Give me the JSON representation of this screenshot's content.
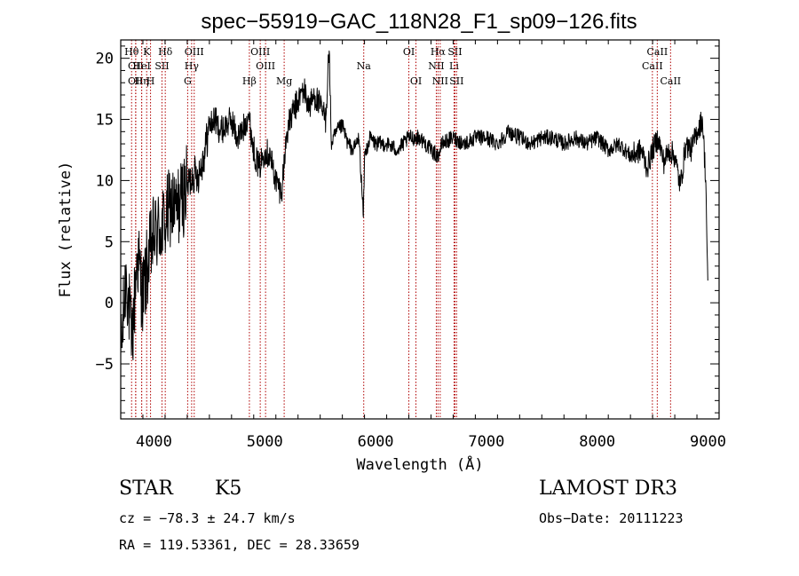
{
  "chart_data": {
    "type": "line",
    "title": "spec−55919−GAC_118N28_F1_sp09−126.fits",
    "xlabel": "Wavelength (Å)",
    "ylabel": "Flux (relative)",
    "xlim": [
      3700,
      9100
    ],
    "ylim": [
      -9.5,
      21.5
    ],
    "x_ticks": [
      4000,
      5000,
      6000,
      7000,
      8000,
      9000
    ],
    "x_tick_labels": [
      "4000",
      "5000",
      "6000",
      "7000",
      "8000",
      "9000"
    ],
    "y_ticks": [
      -5,
      0,
      5,
      10,
      15,
      20
    ],
    "y_tick_labels": [
      "−5",
      "0",
      "5",
      "10",
      "15",
      "20"
    ],
    "grid": false,
    "series": [
      {
        "name": "flux",
        "x": [
          3700,
          3750,
          3800,
          3850,
          3900,
          3950,
          4000,
          4050,
          4100,
          4150,
          4200,
          4250,
          4300,
          4350,
          4400,
          4450,
          4500,
          4550,
          4600,
          4650,
          4700,
          4750,
          4800,
          4850,
          4900,
          4950,
          5000,
          5050,
          5100,
          5150,
          5200,
          5250,
          5300,
          5350,
          5400,
          5450,
          5500,
          5550,
          5580,
          5600,
          5650,
          5700,
          5750,
          5800,
          5850,
          5890,
          5900,
          5950,
          6000,
          6100,
          6200,
          6300,
          6400,
          6500,
          6563,
          6600,
          6700,
          6800,
          6900,
          7000,
          7100,
          7200,
          7300,
          7400,
          7500,
          7600,
          7700,
          7800,
          7900,
          8000,
          8100,
          8200,
          8300,
          8400,
          8450,
          8500,
          8550,
          8600,
          8650,
          8700,
          8750,
          8800,
          8850,
          8900,
          8950,
          8980,
          9000
        ],
        "y": [
          -4.5,
          2.5,
          -3.5,
          4.0,
          0.5,
          3.5,
          5.5,
          6.0,
          6.5,
          8.0,
          7.5,
          8.5,
          9.5,
          10.5,
          10.5,
          12.0,
          14.5,
          15.0,
          14.0,
          14.5,
          15.0,
          13.5,
          14.0,
          15.5,
          12.5,
          11.0,
          12.5,
          12.0,
          10.0,
          9.0,
          14.0,
          15.5,
          16.5,
          17.5,
          16.0,
          17.0,
          16.0,
          15.0,
          21.0,
          13.0,
          14.0,
          14.5,
          13.0,
          12.5,
          13.5,
          7.0,
          12.0,
          13.5,
          13.0,
          13.0,
          12.5,
          13.5,
          13.5,
          12.5,
          12.0,
          13.0,
          13.5,
          13.0,
          13.5,
          13.5,
          13.0,
          14.0,
          13.5,
          13.0,
          13.5,
          13.5,
          13.0,
          13.5,
          13.0,
          13.5,
          12.5,
          13.0,
          12.0,
          12.5,
          11.0,
          12.5,
          13.5,
          11.5,
          12.5,
          12.0,
          9.5,
          13.0,
          12.5,
          14.0,
          15.0,
          10.0,
          0.5
        ]
      }
    ],
    "line_markers": [
      {
        "wl": 3798,
        "label": "Hθ",
        "row": 0
      },
      {
        "wl": 3835,
        "label": "OII",
        "row": 1
      },
      {
        "wl": 3835,
        "label": "OII",
        "row": 2
      },
      {
        "wl": 3889,
        "label": "Hη",
        "row": 2
      },
      {
        "wl": 3934,
        "label": "K",
        "row": 0
      },
      {
        "wl": 3969,
        "label": "H",
        "row": 2
      },
      {
        "wl": 3889,
        "label": "HeI",
        "row": 1
      },
      {
        "wl": 4072,
        "label": "SII",
        "row": 1
      },
      {
        "wl": 4102,
        "label": "Hδ",
        "row": 0
      },
      {
        "wl": 4304,
        "label": "G",
        "row": 2
      },
      {
        "wl": 4340,
        "label": "Hγ",
        "row": 1
      },
      {
        "wl": 4363,
        "label": "OIII",
        "row": 0
      },
      {
        "wl": 4861,
        "label": "Hβ",
        "row": 2
      },
      {
        "wl": 4959,
        "label": "OIII",
        "row": 0
      },
      {
        "wl": 5007,
        "label": "OIII",
        "row": 1
      },
      {
        "wl": 5175,
        "label": "Mg",
        "row": 2
      },
      {
        "wl": 5893,
        "label": "Na",
        "row": 1
      },
      {
        "wl": 6300,
        "label": "OI",
        "row": 0
      },
      {
        "wl": 6364,
        "label": "OI",
        "row": 2
      },
      {
        "wl": 6548,
        "label": "NII",
        "row": 1
      },
      {
        "wl": 6563,
        "label": "Hα",
        "row": 0
      },
      {
        "wl": 6583,
        "label": "NII",
        "row": 2
      },
      {
        "wl": 6708,
        "label": "Li",
        "row": 1
      },
      {
        "wl": 6716,
        "label": "SII",
        "row": 0
      },
      {
        "wl": 6731,
        "label": "SII",
        "row": 2
      },
      {
        "wl": 8498,
        "label": "CaII",
        "row": 1
      },
      {
        "wl": 8542,
        "label": "CaII",
        "row": 0
      },
      {
        "wl": 8662,
        "label": "CaII",
        "row": 2
      }
    ]
  },
  "info": {
    "object_type": "STAR",
    "subclass": "K5",
    "survey": "LAMOST DR3",
    "cz": "cz = −78.3 ± 24.7 km/s",
    "obs_date": "Obs−Date: 20111223",
    "coords": "RA = 119.53361, DEC =  28.33659"
  },
  "colors": {
    "spectrum": "#000000",
    "marker_lines": "#b00000",
    "axes": "#000000"
  }
}
